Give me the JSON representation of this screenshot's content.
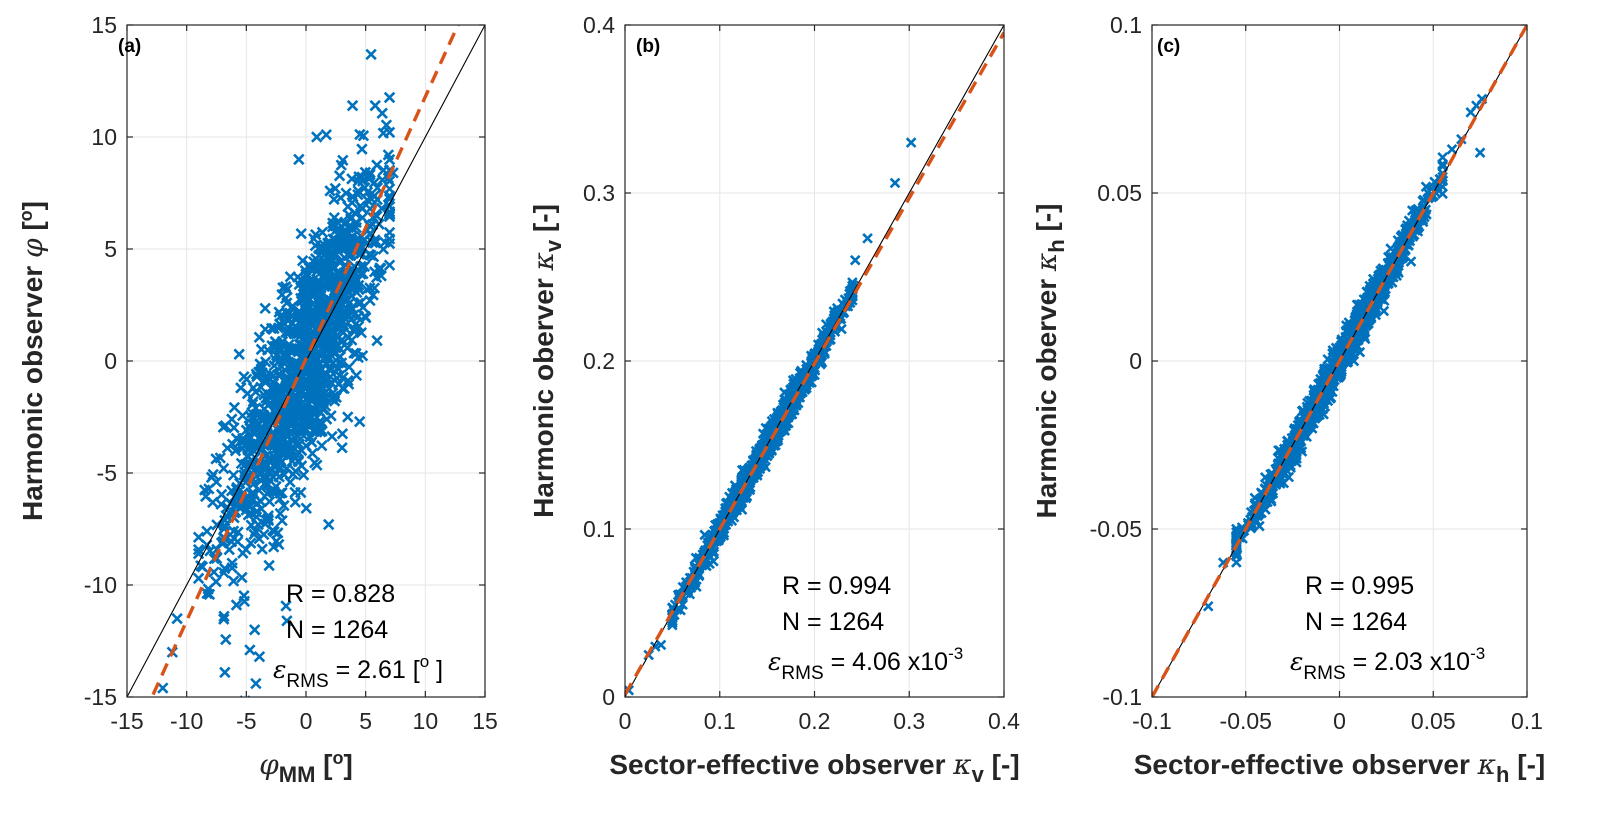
{
  "figure": {
    "colors": {
      "points": "#0072BD",
      "fit": "#D95319",
      "identity": "#000000",
      "grid": "#E6E6E6",
      "axes": "#262626"
    }
  },
  "chart_data": [
    {
      "type": "scatter",
      "panel_label": "(a)",
      "xlim": [
        -15,
        15
      ],
      "ylim": [
        -15,
        15
      ],
      "xticks": [
        -15,
        -10,
        -5,
        0,
        5,
        10,
        15
      ],
      "yticks": [
        -15,
        -10,
        -5,
        0,
        5,
        10,
        15
      ],
      "xtick_labels": [
        "-15",
        "-10",
        "-5",
        "0",
        "5",
        "10",
        "15"
      ],
      "ytick_labels": [
        "-15",
        "-10",
        "-5",
        "0",
        "5",
        "10",
        "15"
      ],
      "xlabel": {
        "main": "φ",
        "sub": "MM",
        "suffix": " [",
        "sup": "o",
        "end": "]"
      },
      "ylabel": {
        "main": "Harmonic observer ",
        "sym": "φ",
        "suffix": " [",
        "sup": "o",
        "end": "]"
      },
      "grid": true,
      "marker": "x",
      "stats": {
        "R": "R = 0.828",
        "N": "N = 1264",
        "rms_symbol": "ε",
        "rms_sub": "RMS",
        "rms_value": " = 2.61 [",
        "rms_sup": "o",
        "rms_end": " ]"
      },
      "identity_line": {
        "from": [
          -15,
          -15
        ],
        "to": [
          15,
          15
        ]
      },
      "fit_line": {
        "slope": 1.17,
        "intercept": 0.1,
        "style": "dashed"
      },
      "cloud": {
        "count": 1264,
        "spread_x": 3.3,
        "noise_y": 2.4,
        "center": 0
      },
      "points": [
        [
          -12.0,
          -14.6
        ],
        [
          -11.2,
          -13.0
        ],
        [
          -10.8,
          -11.5
        ],
        [
          -9.0,
          -8.6
        ],
        [
          -8.3,
          -7.6
        ],
        [
          -6.8,
          -13.9
        ],
        [
          -4.2,
          -14.4
        ],
        [
          -4.3,
          -12.0
        ],
        [
          -4.7,
          -12.9
        ],
        [
          -3.9,
          -13.2
        ],
        [
          -1.6,
          -11.6
        ],
        [
          -0.9,
          -6.3
        ],
        [
          1.9,
          -7.3
        ],
        [
          3.5,
          -2.5
        ],
        [
          3.9,
          11.4
        ],
        [
          5.8,
          11.4
        ],
        [
          1.7,
          10.1
        ],
        [
          0.9,
          10.0
        ],
        [
          -0.6,
          9.0
        ],
        [
          6.9,
          9.2
        ],
        [
          7.3,
          8.4
        ],
        [
          -5.6,
          0.3
        ],
        [
          -5.2,
          -0.7
        ],
        [
          -6.9,
          -4.8
        ],
        [
          -7.5,
          -5.4
        ],
        [
          6.3,
          3.8
        ],
        [
          6.6,
          5.3
        ]
      ]
    },
    {
      "type": "scatter",
      "panel_label": "(b)",
      "xlim": [
        0,
        0.4
      ],
      "ylim": [
        0,
        0.4
      ],
      "xticks": [
        0,
        0.1,
        0.2,
        0.3,
        0.4
      ],
      "yticks": [
        0,
        0.1,
        0.2,
        0.3,
        0.4
      ],
      "xtick_labels": [
        "0",
        "0.1",
        "0.2",
        "0.3",
        "0.4"
      ],
      "ytick_labels": [
        "0",
        "0.1",
        "0.2",
        "0.3",
        "0.4"
      ],
      "xlabel": {
        "main": "Sector-effective observer ",
        "sym": "κ",
        "sub": "v",
        "suffix": " [-]"
      },
      "ylabel": {
        "main": "Harmonic oberver ",
        "sym": "κ",
        "sub": "v",
        "suffix": " [-]"
      },
      "grid": true,
      "marker": "x",
      "stats": {
        "R": "R = 0.994",
        "N": "N = 1264",
        "rms_symbol": "ε",
        "rms_sub": "RMS",
        "rms_value": " = 4.06 x10",
        "rms_sup": "-3"
      },
      "identity_line": {
        "from": [
          0,
          0
        ],
        "to": [
          0.4,
          0.4
        ]
      },
      "fit_line": {
        "slope": 0.985,
        "intercept": 0.0015,
        "style": "dashed"
      },
      "cloud": {
        "count": 1264,
        "x_range": [
          0.05,
          0.24
        ],
        "noise_y": 0.004
      },
      "points": [
        [
          0.004,
          0.004
        ],
        [
          0.025,
          0.025
        ],
        [
          0.032,
          0.03
        ],
        [
          0.038,
          0.031
        ],
        [
          0.055,
          0.052
        ],
        [
          0.256,
          0.273
        ],
        [
          0.243,
          0.26
        ],
        [
          0.285,
          0.306
        ],
        [
          0.302,
          0.33
        ],
        [
          0.241,
          0.245
        ],
        [
          0.237,
          0.24
        ]
      ]
    },
    {
      "type": "scatter",
      "panel_label": "(c)",
      "xlim": [
        -0.1,
        0.1
      ],
      "ylim": [
        -0.1,
        0.1
      ],
      "xticks": [
        -0.1,
        -0.05,
        0,
        0.05,
        0.1
      ],
      "yticks": [
        -0.1,
        -0.05,
        0,
        0.05,
        0.1
      ],
      "xtick_labels": [
        "-0.1",
        "-0.05",
        "0",
        "0.05",
        "0.1"
      ],
      "ytick_labels": [
        "-0.1",
        "-0.05",
        "0",
        "0.05",
        "0.1"
      ],
      "xlabel": {
        "main": "Sector-effective observer ",
        "sym": "κ",
        "sub": "h",
        "suffix": " [-]"
      },
      "ylabel": {
        "main": "Harmonic oberver ",
        "sym": "κ",
        "sub": "h",
        "suffix": " [-]"
      },
      "grid": true,
      "marker": "x",
      "stats": {
        "R": "R = 0.995",
        "N": "N = 1264",
        "rms_symbol": "ε",
        "rms_sub": "RMS",
        "rms_value": " = 2.03 x10",
        "rms_sup": "-3"
      },
      "identity_line": {
        "from": [
          -0.1,
          -0.1
        ],
        "to": [
          0.1,
          0.1
        ]
      },
      "fit_line": {
        "slope": 1.0,
        "intercept": 0.0,
        "style": "dashed"
      },
      "cloud": {
        "count": 1264,
        "x_range": [
          -0.055,
          0.055
        ],
        "noise_y": 0.0025
      },
      "points": [
        [
          -0.07,
          -0.073
        ],
        [
          -0.062,
          -0.06
        ],
        [
          -0.055,
          -0.05
        ],
        [
          0.06,
          0.063
        ],
        [
          0.065,
          0.066
        ],
        [
          0.075,
          0.062
        ],
        [
          0.073,
          0.076
        ],
        [
          0.076,
          0.078
        ],
        [
          0.07,
          0.074
        ]
      ]
    }
  ]
}
